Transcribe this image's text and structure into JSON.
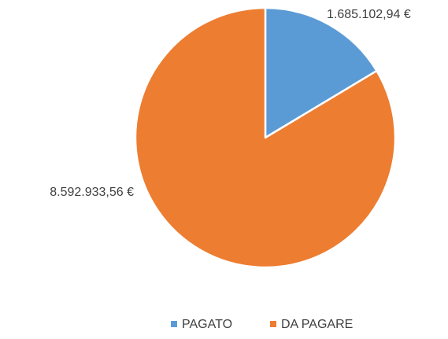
{
  "chart_data": {
    "type": "pie",
    "categories": [
      "PAGATO",
      "DA PAGARE"
    ],
    "values": [
      1685102.94,
      8592933.56
    ],
    "value_labels": [
      "1.685.102,94 €",
      "8.592.933,56 €"
    ],
    "colors": [
      "#5b9bd5",
      "#ed7d31"
    ],
    "legend": "bottom"
  }
}
